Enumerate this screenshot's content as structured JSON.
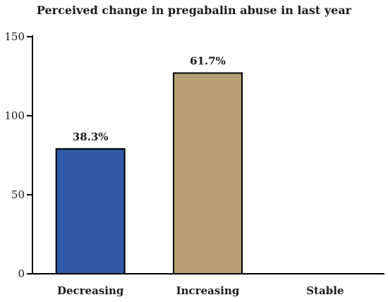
{
  "chart_data": {
    "type": "bar",
    "title": "Perceived change in pregabalin abuse in last year",
    "xlabel": "",
    "ylabel": "",
    "categories": [
      "Decreasing",
      "Increasing",
      "Stable"
    ],
    "values": [
      79,
      127,
      0
    ],
    "data_labels": [
      "38.3%",
      "61.7%",
      ""
    ],
    "colors": [
      "#2f5aa8",
      "#b59f72",
      "#ffffff"
    ],
    "ylim": [
      0,
      150
    ],
    "yticks": [
      0,
      50,
      100,
      150
    ],
    "ytick_labels": [
      "0",
      "50",
      "100",
      "150"
    ],
    "grid": false,
    "legend": "none"
  }
}
